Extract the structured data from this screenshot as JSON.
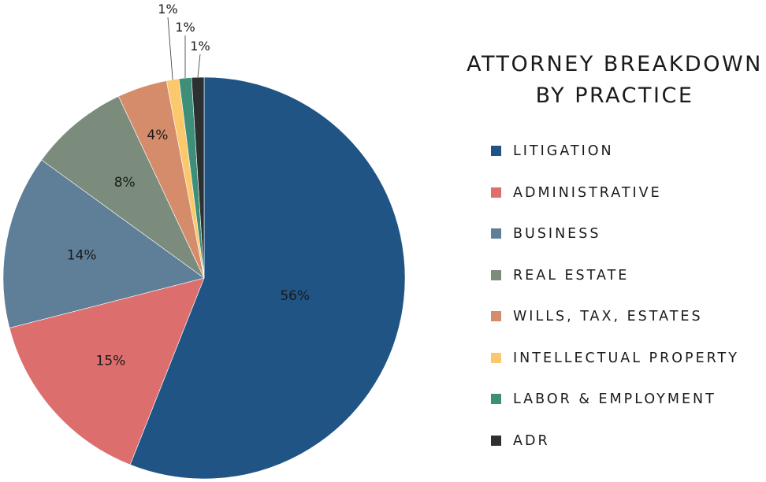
{
  "chart_data": {
    "type": "pie",
    "title": [
      "ATTORNEY BREAKDOWN",
      "BY PRACTICE"
    ],
    "categories": [
      "LITIGATION",
      "ADMINISTRATIVE",
      "BUSINESS",
      "REAL ESTATE",
      "WILLS, TAX, ESTATES",
      "INTELLECTUAL PROPERTY",
      "LABOR & EMPLOYMENT",
      "ADR"
    ],
    "values": [
      56,
      15,
      14,
      8,
      4,
      1,
      1,
      1
    ],
    "labels": [
      "56%",
      "15%",
      "14%",
      "8%",
      "4%",
      "1%",
      "1%",
      "1%"
    ],
    "colors": [
      "#1f5485",
      "#dc6f6e",
      "#5f7e98",
      "#7b8c7c",
      "#d58c6b",
      "#fcc86d",
      "#3e8f79",
      "#2d3031"
    ],
    "start_angle": "12 o'clock",
    "direction": "clockwise",
    "legend_position": "right"
  }
}
